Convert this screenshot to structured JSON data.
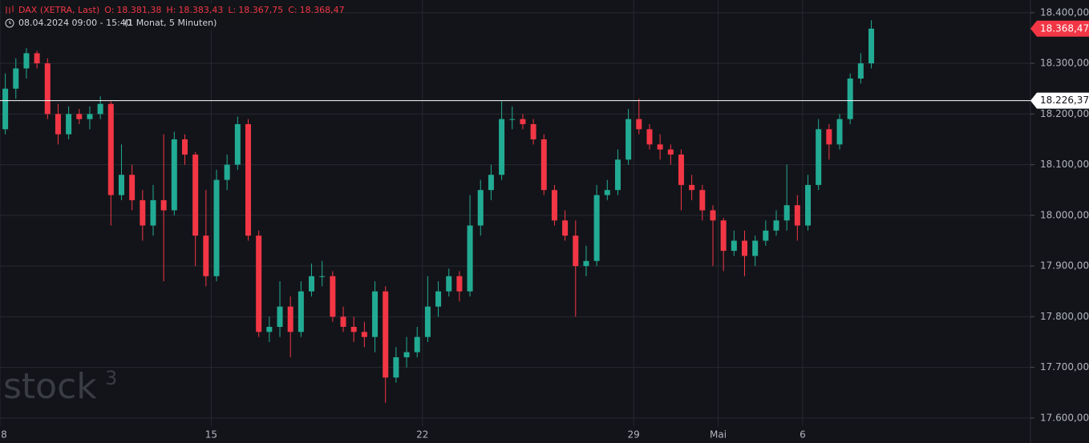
{
  "header": {
    "symbol": "DAX (XETRA, Last)",
    "ohlc": [
      {
        "key": "O:",
        "value": "18.381,38"
      },
      {
        "key": "H:",
        "value": "18.383,43"
      },
      {
        "key": "L:",
        "value": "18.367,75"
      },
      {
        "key": "C:",
        "value": "18.368,47"
      }
    ],
    "range": "08.04.2024 09:00 - 15:40",
    "interval": "(1 Monat, 5 Minuten)"
  },
  "watermark": {
    "text": "stock",
    "sup": "3"
  },
  "chart_data": {
    "type": "candlestick",
    "categories": [
      "8",
      null,
      null,
      null,
      null,
      null,
      null,
      null,
      null,
      null,
      null,
      null,
      null,
      null,
      null,
      null,
      null,
      null,
      null,
      null,
      "15",
      null,
      null,
      null,
      null,
      null,
      null,
      null,
      null,
      null,
      null,
      null,
      null,
      null,
      null,
      null,
      null,
      null,
      null,
      null,
      "22",
      null,
      null,
      null,
      null,
      null,
      null,
      null,
      null,
      null,
      null,
      null,
      null,
      null,
      null,
      null,
      null,
      null,
      null,
      null,
      "29",
      null,
      null,
      null,
      null,
      null,
      null,
      null,
      "Mai",
      null,
      null,
      null,
      null,
      null,
      null,
      null,
      "6",
      null,
      null,
      null,
      null,
      null,
      null
    ],
    "open": [
      18170,
      18250,
      18290,
      18320,
      18300,
      18200,
      18160,
      18200,
      18190,
      18200,
      18220,
      18040,
      18080,
      18030,
      17980,
      18030,
      18010,
      18150,
      18120,
      17960,
      17880,
      18070,
      18100,
      18180,
      17960,
      17770,
      17780,
      17820,
      17770,
      17850,
      17880,
      17880,
      17800,
      17780,
      17770,
      17760,
      17850,
      17680,
      17720,
      17730,
      17760,
      17820,
      17850,
      17880,
      17850,
      17980,
      18050,
      18080,
      18190,
      18190,
      18180,
      18150,
      18050,
      17990,
      17960,
      17900,
      17910,
      18040,
      18050,
      18110,
      18190,
      18170,
      18140,
      18130,
      18120,
      18060,
      18050,
      18010,
      17990,
      17930,
      17950,
      17920,
      17950,
      17970,
      17990,
      18020,
      17980,
      18060,
      18170,
      18140,
      18190,
      18270,
      18300
    ],
    "high": [
      18280,
      18310,
      18330,
      18325,
      18310,
      18220,
      18215,
      18210,
      18215,
      18235,
      18225,
      18140,
      18100,
      18050,
      18060,
      18160,
      18165,
      18160,
      18125,
      18050,
      18090,
      18120,
      18195,
      18190,
      17970,
      17800,
      17870,
      17840,
      17870,
      17905,
      17910,
      17890,
      17820,
      17800,
      17790,
      17870,
      17860,
      17740,
      17760,
      17780,
      17880,
      17870,
      17895,
      17890,
      18040,
      18070,
      18100,
      18225,
      18215,
      18200,
      18190,
      18160,
      18060,
      18010,
      17990,
      17940,
      18060,
      18070,
      18130,
      18210,
      18230,
      18180,
      18160,
      18140,
      18130,
      18080,
      18060,
      18020,
      17995,
      17970,
      17970,
      17960,
      17990,
      18010,
      18100,
      18040,
      18080,
      18190,
      18180,
      18200,
      18280,
      18320,
      18385
    ],
    "low": [
      18160,
      18230,
      18270,
      18290,
      18190,
      18140,
      18150,
      18180,
      18170,
      18190,
      17980,
      18030,
      18010,
      17950,
      17960,
      17870,
      18000,
      18100,
      17900,
      17860,
      17870,
      18050,
      18090,
      17950,
      17760,
      17750,
      17760,
      17720,
      17760,
      17840,
      17860,
      17790,
      17770,
      17750,
      17740,
      17730,
      17630,
      17670,
      17700,
      17720,
      17750,
      17800,
      17840,
      17830,
      17840,
      17960,
      18030,
      18070,
      18170,
      18170,
      18140,
      18040,
      17980,
      17950,
      17800,
      17880,
      17900,
      18030,
      18040,
      18100,
      18160,
      18130,
      18110,
      18100,
      18010,
      18030,
      17990,
      17900,
      17890,
      17920,
      17880,
      17900,
      17940,
      17960,
      17970,
      17950,
      17970,
      18050,
      18110,
      18130,
      18180,
      18260,
      18290
    ],
    "close": [
      18250,
      18290,
      18320,
      18300,
      18200,
      18160,
      18200,
      18190,
      18200,
      18220,
      18040,
      18080,
      18030,
      17980,
      18030,
      18010,
      18150,
      18120,
      17960,
      17880,
      18070,
      18100,
      18180,
      17960,
      17770,
      17780,
      17820,
      17770,
      17850,
      17880,
      17880,
      17800,
      17780,
      17770,
      17760,
      17850,
      17680,
      17720,
      17730,
      17760,
      17820,
      17850,
      17880,
      17850,
      17980,
      18050,
      18080,
      18190,
      18190,
      18180,
      18150,
      18050,
      17990,
      17960,
      17900,
      17910,
      18040,
      18050,
      18110,
      18190,
      18170,
      18140,
      18130,
      18120,
      18060,
      18050,
      18010,
      17990,
      17930,
      17950,
      17920,
      17950,
      17970,
      17990,
      18020,
      17980,
      18060,
      18170,
      18140,
      18190,
      18270,
      18300,
      18368.47
    ],
    "up_color": "#22ab94",
    "down_color": "#f23645",
    "ylim": [
      17584,
      18425
    ],
    "yticks": [
      {
        "value": 17600,
        "label": "17.600,00"
      },
      {
        "value": 17700,
        "label": "17.700,00"
      },
      {
        "value": 17800,
        "label": "17.800,00"
      },
      {
        "value": 17900,
        "label": "17.900,00"
      },
      {
        "value": 18000,
        "label": "18.000,00"
      },
      {
        "value": 18100,
        "label": "18.100,00"
      },
      {
        "value": 18200,
        "label": "18.200,00"
      },
      {
        "value": 18300,
        "label": "18.300,00"
      },
      {
        "value": 18400,
        "label": "18.400,00"
      }
    ],
    "grid": true,
    "level_line": {
      "value": 18226.37,
      "label": "18.226,37"
    },
    "last_price": {
      "value": 18368.47,
      "label": "18.368,47"
    }
  }
}
